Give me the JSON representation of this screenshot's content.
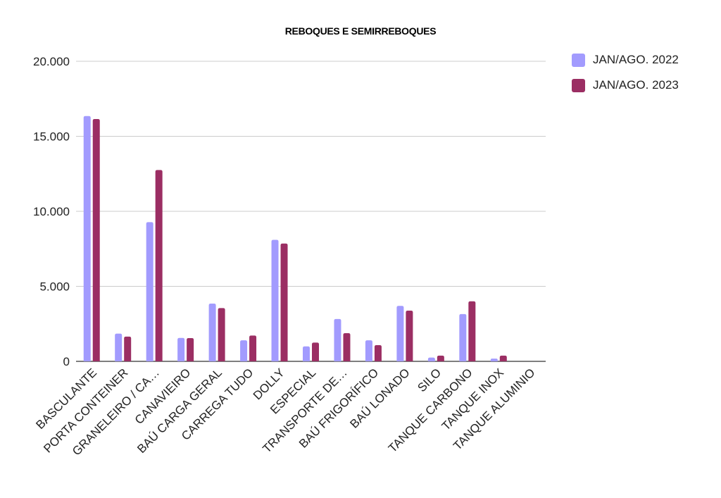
{
  "chart_data": {
    "type": "bar",
    "title": "REBOQUES E SEMIRREBOQUES",
    "xlabel": "",
    "ylabel": "",
    "ylim": [
      0,
      20000
    ],
    "yticks": [
      0,
      5000,
      10000,
      15000,
      20000
    ],
    "ytick_labels": [
      "0",
      "5.000",
      "10.000",
      "15.000",
      "20.000"
    ],
    "grid": true,
    "legend_position": "top-right",
    "categories": [
      "BASCULANTE",
      "PORTA CONTEINER",
      "GRANELEIRO / CA…",
      "CANAVIEIRO",
      "BAÚ CARGA GERAL",
      "CARREGA TUDO",
      "DOLLY",
      "ESPECIAL",
      "TRANSPORTE DE…",
      "BAÚ FRIGORÍFICO",
      "BAÚ LONADO",
      "SILO",
      "TANQUE CARBONO",
      "TANQUE INOX",
      "TANQUE ALUMINIO"
    ],
    "series": [
      {
        "name": "JAN/AGO. 2022",
        "color": "#a29bfe",
        "values": [
          16350,
          1850,
          9280,
          1560,
          3850,
          1400,
          8100,
          1000,
          2820,
          1400,
          3700,
          250,
          3150,
          180,
          0
        ]
      },
      {
        "name": "JAN/AGO. 2023",
        "color": "#9b2e63",
        "values": [
          16150,
          1650,
          12750,
          1550,
          3550,
          1720,
          7850,
          1250,
          1880,
          1080,
          3380,
          380,
          4000,
          380,
          0
        ]
      }
    ]
  }
}
